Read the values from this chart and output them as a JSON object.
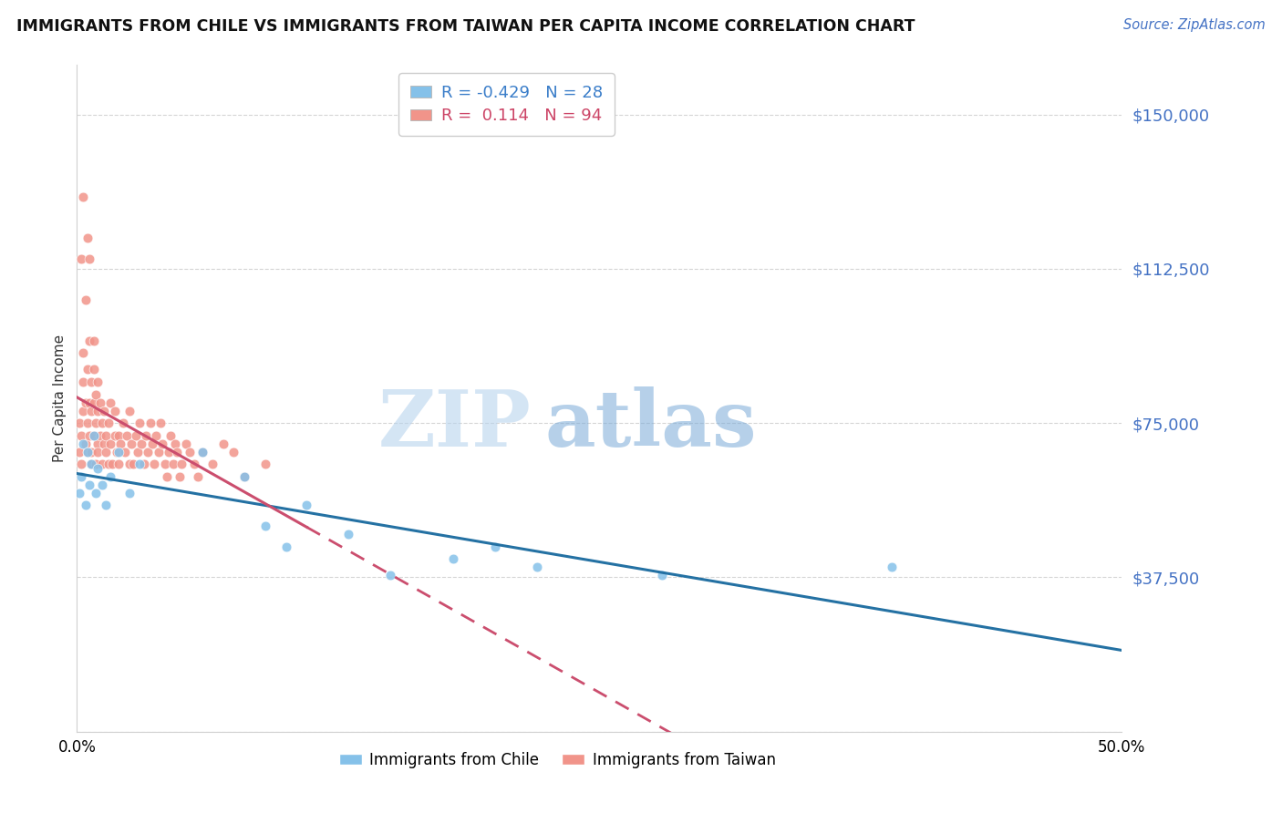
{
  "title": "IMMIGRANTS FROM CHILE VS IMMIGRANTS FROM TAIWAN PER CAPITA INCOME CORRELATION CHART",
  "source": "Source: ZipAtlas.com",
  "ylabel": "Per Capita Income",
  "xlim": [
    0,
    0.5
  ],
  "ylim": [
    0,
    162000
  ],
  "yticks": [
    0,
    37500,
    75000,
    112500,
    150000
  ],
  "ytick_labels": [
    "",
    "$37,500",
    "$75,000",
    "$112,500",
    "$150,000"
  ],
  "xticks": [
    0.0,
    0.1,
    0.2,
    0.3,
    0.4,
    0.5
  ],
  "xtick_labels": [
    "0.0%",
    "",
    "",
    "",
    "",
    "50.0%"
  ],
  "chile_color": "#85C1E9",
  "taiwan_color": "#F1948A",
  "chile_line_color": "#2471A3",
  "taiwan_line_color": "#CB4E6E",
  "R_chile": -0.429,
  "N_chile": 28,
  "R_taiwan": 0.114,
  "N_taiwan": 94,
  "chile_x": [
    0.001,
    0.002,
    0.003,
    0.004,
    0.005,
    0.006,
    0.007,
    0.008,
    0.009,
    0.01,
    0.012,
    0.014,
    0.016,
    0.02,
    0.025,
    0.03,
    0.06,
    0.08,
    0.09,
    0.1,
    0.11,
    0.13,
    0.15,
    0.18,
    0.2,
    0.22,
    0.28,
    0.39
  ],
  "chile_y": [
    58000,
    62000,
    70000,
    55000,
    68000,
    60000,
    65000,
    72000,
    58000,
    64000,
    60000,
    55000,
    62000,
    68000,
    58000,
    65000,
    68000,
    62000,
    50000,
    45000,
    55000,
    48000,
    38000,
    42000,
    45000,
    40000,
    38000,
    40000
  ],
  "taiwan_x": [
    0.001,
    0.001,
    0.002,
    0.002,
    0.002,
    0.003,
    0.003,
    0.003,
    0.003,
    0.004,
    0.004,
    0.004,
    0.005,
    0.005,
    0.005,
    0.005,
    0.006,
    0.006,
    0.006,
    0.006,
    0.007,
    0.007,
    0.007,
    0.007,
    0.008,
    0.008,
    0.008,
    0.008,
    0.009,
    0.009,
    0.009,
    0.01,
    0.01,
    0.01,
    0.01,
    0.011,
    0.011,
    0.012,
    0.012,
    0.013,
    0.013,
    0.014,
    0.014,
    0.015,
    0.015,
    0.016,
    0.016,
    0.017,
    0.018,
    0.018,
    0.019,
    0.02,
    0.02,
    0.021,
    0.022,
    0.023,
    0.024,
    0.025,
    0.025,
    0.026,
    0.027,
    0.028,
    0.029,
    0.03,
    0.031,
    0.032,
    0.033,
    0.034,
    0.035,
    0.036,
    0.037,
    0.038,
    0.039,
    0.04,
    0.041,
    0.042,
    0.043,
    0.044,
    0.045,
    0.046,
    0.047,
    0.048,
    0.049,
    0.05,
    0.052,
    0.054,
    0.056,
    0.058,
    0.06,
    0.065,
    0.07,
    0.075,
    0.08,
    0.09
  ],
  "taiwan_y": [
    68000,
    75000,
    65000,
    72000,
    115000,
    78000,
    85000,
    92000,
    130000,
    70000,
    80000,
    105000,
    88000,
    68000,
    75000,
    120000,
    72000,
    80000,
    95000,
    115000,
    65000,
    78000,
    85000,
    68000,
    72000,
    80000,
    88000,
    95000,
    65000,
    75000,
    82000,
    70000,
    78000,
    85000,
    68000,
    72000,
    80000,
    65000,
    75000,
    70000,
    78000,
    68000,
    72000,
    65000,
    75000,
    70000,
    80000,
    65000,
    72000,
    78000,
    68000,
    65000,
    72000,
    70000,
    75000,
    68000,
    72000,
    65000,
    78000,
    70000,
    65000,
    72000,
    68000,
    75000,
    70000,
    65000,
    72000,
    68000,
    75000,
    70000,
    65000,
    72000,
    68000,
    75000,
    70000,
    65000,
    62000,
    68000,
    72000,
    65000,
    70000,
    68000,
    62000,
    65000,
    70000,
    68000,
    65000,
    62000,
    68000,
    65000,
    70000,
    68000,
    62000,
    65000
  ]
}
